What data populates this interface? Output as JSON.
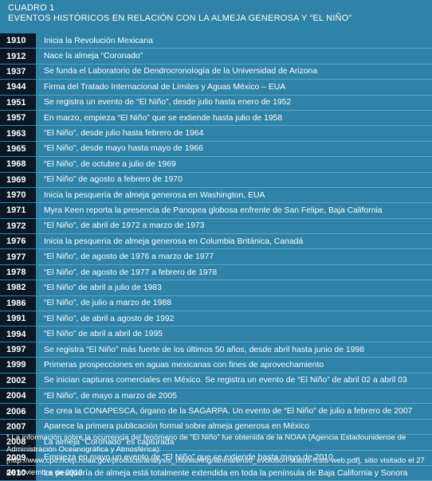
{
  "header": {
    "label": "CUADRO 1",
    "title": "EVENTOS HISTÓRICOS EN RELACIÓN CON LA ALMEJA GENEROSA Y “EL NIÑO”"
  },
  "rows": [
    {
      "year": "1910",
      "event": "Inicia la Revolución Mexicana"
    },
    {
      "year": "1912",
      "event": "Nace la almeja “Coronado”"
    },
    {
      "year": "1937",
      "event": "Se funda el Laboratorio de Dendrocronología de la Universidad de Arizona"
    },
    {
      "year": "1944",
      "event": "Firma del Tratado Internacional de Límites y Aguas México – EUA"
    },
    {
      "year": "1951",
      "event": "Se registra un evento de “El Niño”, desde julio hasta enero de 1952"
    },
    {
      "year": "1957",
      "event": "En marzo, empieza “El Niño” que se extiende hasta julio de 1958"
    },
    {
      "year": "1963",
      "event": "“El Niño”, desde julio hasta febrero de 1964"
    },
    {
      "year": "1965",
      "event": "“El Niño”, desde mayo hasta mayo de 1966"
    },
    {
      "year": "1968",
      "event": "“El Niño”, de octubre a julio de 1969"
    },
    {
      "year": "1969",
      "event": "“El Niño” de agosto a febrero de 1970"
    },
    {
      "year": "1970",
      "event": "Inicia la pesquería de almeja generosa en Washington, EUA"
    },
    {
      "year": "1971",
      "event": "Myra Keen reporta la presencia de Panopea globosa enfrente de San Felipe, Baja California"
    },
    {
      "year": "1972",
      "event": "“El Niño”, de abril de 1972 a marzo de 1973"
    },
    {
      "year": "1976",
      "event": "Inicia la pesquería de almeja generosa en Columbia Británica, Canadá"
    },
    {
      "year": "1977",
      "event": "“El Niño”, de agosto de 1976 a marzo de 1977"
    },
    {
      "year": "1978",
      "event": "“El Niño”, de agosto de 1977 a febrero de 1978"
    },
    {
      "year": "1982",
      "event": "“El Niño” de abril a julio de 1983"
    },
    {
      "year": "1986",
      "event": "“El Niño”, de julio a marzo de 1988"
    },
    {
      "year": "1991",
      "event": "“El Niño”, de abril a agosto de 1992"
    },
    {
      "year": "1994",
      "event": "“El Niño” de abril a abril de 1995"
    },
    {
      "year": "1997",
      "event": "Se registra “El Niño” más fuerte de los últimos 50 años, desde abril hasta junio de 1998"
    },
    {
      "year": "1999",
      "event": "Primeras prospecciones en aguas mexicanas con fines de aprovechamiento"
    },
    {
      "year": "2002",
      "event": "Se inician capturas comerciales en México. Se registra un evento de “El Niño” de abril 02 a abril 03"
    },
    {
      "year": "2004",
      "event": "“El Niño”, de mayo a marzo de 2005"
    },
    {
      "year": "2006",
      "event": "Se crea la CONAPESCA, órgano de la SAGARPA. Un evento de “El Niño” de julio a febrero de 2007"
    },
    {
      "year": "2007",
      "event": "Aparece la primera publicación formal sobre almeja generosa en México"
    },
    {
      "year": "2008",
      "event": "La almeja “Coronado” es capturada"
    },
    {
      "year": "2009",
      "event": "Empieza en mayo un evento de “El Niño” que se extiende hasta mayo de 2010"
    },
    {
      "year": "2010",
      "event": "La pesquería de almeja está totalmente extendida en toda la península de Baja California y Sonora"
    }
  ],
  "footnote": "* La información sobre la ocurrencia del fenómeno de “El Niño” fue obtenida de la NOAA (Agencia Estadounidense de Administración Oceanográfica y Atmosférica): [http://www.cpc.ncep.noaa.gov/products/analysis_monitoring/lanina/enso_evolution-status-fcsts-web.pdf], sitio visitado el 27 de noviembre de 2010."
}
